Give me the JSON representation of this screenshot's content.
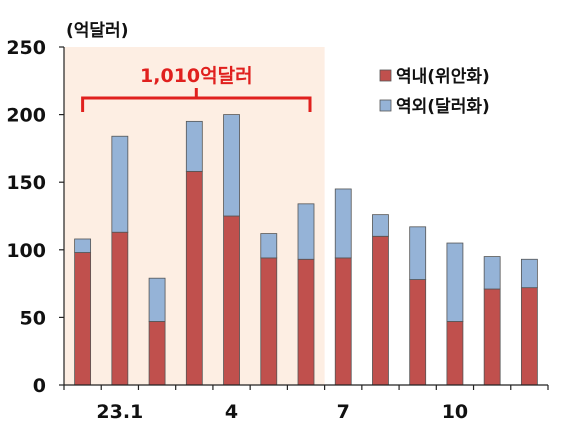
{
  "chart_data": {
    "type": "bar",
    "stacked": true,
    "unit_label": "(억달러)",
    "title": "",
    "xlabel": "",
    "ylabel": "",
    "ylim": [
      0,
      250
    ],
    "yticks": [
      0,
      50,
      100,
      150,
      200,
      250
    ],
    "grid": false,
    "legend_position": "top-right",
    "x_tick_labels": [
      {
        "index": 1,
        "label": "23.1"
      },
      {
        "index": 4,
        "label": "4"
      },
      {
        "index": 7,
        "label": "7"
      },
      {
        "index": 10,
        "label": "10"
      }
    ],
    "series": [
      {
        "name": "역내(위안화)",
        "color": "#c0504d",
        "values": [
          98,
          113,
          47,
          158,
          125,
          94,
          93,
          94,
          110,
          78,
          47,
          71,
          72
        ]
      },
      {
        "name": "역외(달러화)",
        "color": "#95b3d7",
        "values": [
          10,
          71,
          32,
          37,
          75,
          18,
          41,
          51,
          16,
          39,
          58,
          24,
          21
        ]
      }
    ],
    "annotation": {
      "text": "1,010억달러",
      "color": "#e0201e",
      "highlight_color": "#fdeee3",
      "from_index": 0,
      "to_index": 6
    }
  }
}
